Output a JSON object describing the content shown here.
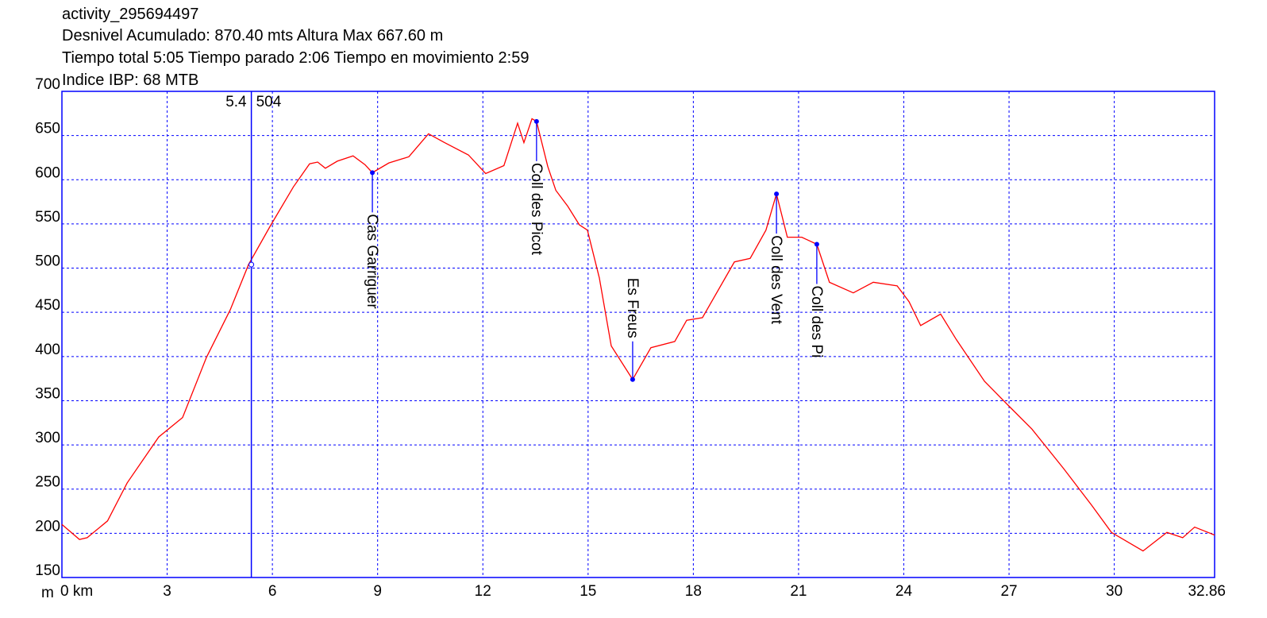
{
  "chart_data": {
    "type": "line",
    "title": "activity_295694497",
    "subtitles": [
      "Desnivel Acumulado: 870.40 mts  Altura Max 667.60 m",
      "Tiempo total 5:05 Tiempo parado 2:06 Tiempo en movimiento 2:59",
      "Indice IBP: 68 MTB"
    ],
    "y_unit": "m",
    "x": [
      0,
      0.5,
      0.72,
      1.3,
      1.86,
      2.76,
      3.44,
      4.12,
      4.8,
      5.32,
      5.93,
      6.6,
      7.06,
      7.29,
      7.51,
      7.85,
      8.3,
      8.64,
      8.85,
      9.32,
      9.89,
      10.45,
      10.91,
      11.59,
      12.08,
      12.6,
      12.99,
      13.17,
      13.4,
      13.53,
      13.85,
      14.08,
      14.42,
      14.75,
      14.98,
      15.32,
      15.66,
      16.27,
      16.79,
      17.47,
      17.81,
      18.26,
      19.17,
      19.62,
      20.07,
      20.37,
      20.68,
      21.09,
      21.52,
      21.88,
      22.56,
      23.13,
      23.81,
      24.15,
      24.48,
      25.05,
      25.5,
      26.3,
      26.97,
      27.65,
      28.56,
      29.35,
      29.92,
      30.82,
      31.5,
      31.95,
      32.29,
      32.86
    ],
    "series": [
      {
        "color": "#ff0000",
        "values": [
          210,
          193,
          195,
          214,
          257,
          309,
          331,
          399,
          453,
          504,
          547,
          592,
          618,
          620,
          613,
          621,
          627,
          617,
          608,
          619,
          626,
          652,
          642,
          628,
          607,
          616,
          664,
          642,
          669,
          666,
          615,
          588,
          570,
          549,
          543,
          489,
          412,
          374,
          410,
          417,
          441,
          444,
          507,
          511,
          543,
          584,
          535,
          535,
          527,
          484,
          472,
          484,
          480,
          462,
          435,
          448,
          419,
          372,
          345,
          318,
          273,
          232,
          201,
          180,
          201,
          195,
          207,
          198
        ]
      }
    ],
    "xlim": [
      0,
      32.86
    ],
    "ylim": [
      150,
      700
    ],
    "xticks": [
      {
        "value": 0,
        "label": "0 km"
      },
      3,
      6,
      9,
      12,
      15,
      18,
      21,
      24,
      27,
      30,
      32.86
    ],
    "yticks": [
      150,
      200,
      250,
      300,
      350,
      400,
      450,
      500,
      550,
      600,
      650,
      700
    ],
    "grid": true,
    "axis_color": "#0000ff",
    "annotations": [
      {
        "label": "Cas Garriguer",
        "x": 8.85,
        "y": 608
      },
      {
        "label": "Coll des Picot",
        "x": 13.53,
        "y": 666
      },
      {
        "label": "Es Freus",
        "x": 16.27,
        "y": 374
      },
      {
        "label": "Coll des Vent",
        "x": 20.37,
        "y": 584
      },
      {
        "label": "Coll des Pi",
        "x": 21.52,
        "y": 527
      }
    ],
    "cursor": {
      "x": 5.4,
      "y": 504
    }
  }
}
